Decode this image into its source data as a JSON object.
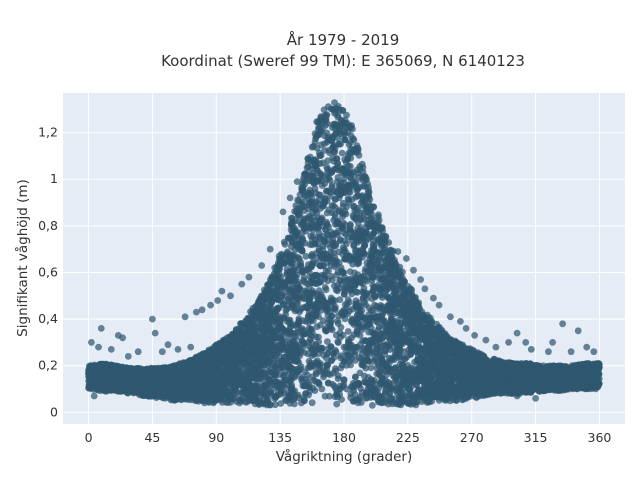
{
  "chart_data": {
    "type": "scatter",
    "title_lines": [
      "År 1979 - 2019",
      "Koordinat (Sweref 99 TM): E 365069, N 6140123"
    ],
    "xlabel": "Vågriktning (grader)",
    "ylabel": "Signifikant våghöjd (m)",
    "xlim": [
      -18,
      378
    ],
    "ylim": [
      -0.05,
      1.37
    ],
    "x_ticks": [
      0,
      45,
      90,
      135,
      180,
      225,
      270,
      315,
      360
    ],
    "x_tick_labels": [
      "0",
      "45",
      "90",
      "135",
      "180",
      "225",
      "270",
      "315",
      "360"
    ],
    "y_ticks": [
      0,
      0.2,
      0.4,
      0.6,
      0.8,
      1.0,
      1.2
    ],
    "y_tick_labels": [
      "0",
      "0,2",
      "0,4",
      "0,6",
      "0,8",
      "1",
      "1,2"
    ],
    "grid": true,
    "plot_background": "#e5ecf6",
    "marker_color": "#2f5870",
    "series": [
      {
        "envelope": {
          "x": [
            0,
            10,
            20,
            30,
            40,
            50,
            60,
            70,
            80,
            90,
            100,
            110,
            120,
            130,
            140,
            150,
            155,
            160,
            165,
            170,
            175,
            180,
            185,
            190,
            195,
            200,
            210,
            220,
            230,
            240,
            250,
            260,
            270,
            280,
            290,
            300,
            310,
            320,
            330,
            340,
            350,
            360
          ],
          "lower": [
            0.1,
            0.09,
            0.09,
            0.08,
            0.07,
            0.06,
            0.05,
            0.05,
            0.04,
            0.04,
            0.04,
            0.04,
            0.03,
            0.03,
            0.03,
            0.03,
            0.03,
            0.03,
            0.03,
            0.03,
            0.03,
            0.03,
            0.03,
            0.03,
            0.03,
            0.03,
            0.03,
            0.03,
            0.03,
            0.04,
            0.04,
            0.05,
            0.06,
            0.07,
            0.08,
            0.08,
            0.08,
            0.09,
            0.09,
            0.1,
            0.1,
            0.1
          ],
          "upper": [
            0.2,
            0.21,
            0.2,
            0.19,
            0.19,
            0.19,
            0.2,
            0.22,
            0.25,
            0.29,
            0.33,
            0.4,
            0.48,
            0.6,
            0.77,
            0.98,
            1.12,
            1.24,
            1.3,
            1.33,
            1.33,
            1.3,
            1.24,
            1.13,
            1.02,
            0.92,
            0.76,
            0.62,
            0.5,
            0.41,
            0.35,
            0.3,
            0.27,
            0.24,
            0.22,
            0.21,
            0.21,
            0.2,
            0.2,
            0.2,
            0.21,
            0.21
          ]
        },
        "outliers": [
          [
            2,
            0.3
          ],
          [
            7,
            0.28
          ],
          [
            9,
            0.36
          ],
          [
            16,
            0.27
          ],
          [
            21,
            0.33
          ],
          [
            24,
            0.32
          ],
          [
            28,
            0.24
          ],
          [
            35,
            0.26
          ],
          [
            45,
            0.4
          ],
          [
            47,
            0.34
          ],
          [
            52,
            0.26
          ],
          [
            56,
            0.29
          ],
          [
            63,
            0.27
          ],
          [
            68,
            0.41
          ],
          [
            72,
            0.28
          ],
          [
            76,
            0.43
          ],
          [
            80,
            0.44
          ],
          [
            86,
            0.46
          ],
          [
            91,
            0.48
          ],
          [
            94,
            0.52
          ],
          [
            100,
            0.5
          ],
          [
            108,
            0.55
          ],
          [
            113,
            0.58
          ],
          [
            122,
            0.63
          ],
          [
            128,
            0.7
          ],
          [
            137,
            0.86
          ],
          [
            142,
            0.92
          ],
          [
            147,
            0.99
          ],
          [
            218,
            0.69
          ],
          [
            224,
            0.66
          ],
          [
            229,
            0.61
          ],
          [
            234,
            0.57
          ],
          [
            237,
            0.53
          ],
          [
            243,
            0.49
          ],
          [
            247,
            0.46
          ],
          [
            255,
            0.41
          ],
          [
            262,
            0.39
          ],
          [
            266,
            0.36
          ],
          [
            272,
            0.33
          ],
          [
            280,
            0.31
          ],
          [
            287,
            0.28
          ],
          [
            296,
            0.3
          ],
          [
            302,
            0.34
          ],
          [
            308,
            0.3
          ],
          [
            312,
            0.27
          ],
          [
            324,
            0.26
          ],
          [
            327,
            0.3
          ],
          [
            334,
            0.38
          ],
          [
            340,
            0.26
          ],
          [
            345,
            0.35
          ],
          [
            351,
            0.28
          ],
          [
            356,
            0.26
          ],
          [
            4,
            0.07
          ],
          [
            150,
            0.04
          ],
          [
            200,
            0.03
          ],
          [
            302,
            0.07
          ],
          [
            315,
            0.06
          ]
        ]
      }
    ]
  }
}
